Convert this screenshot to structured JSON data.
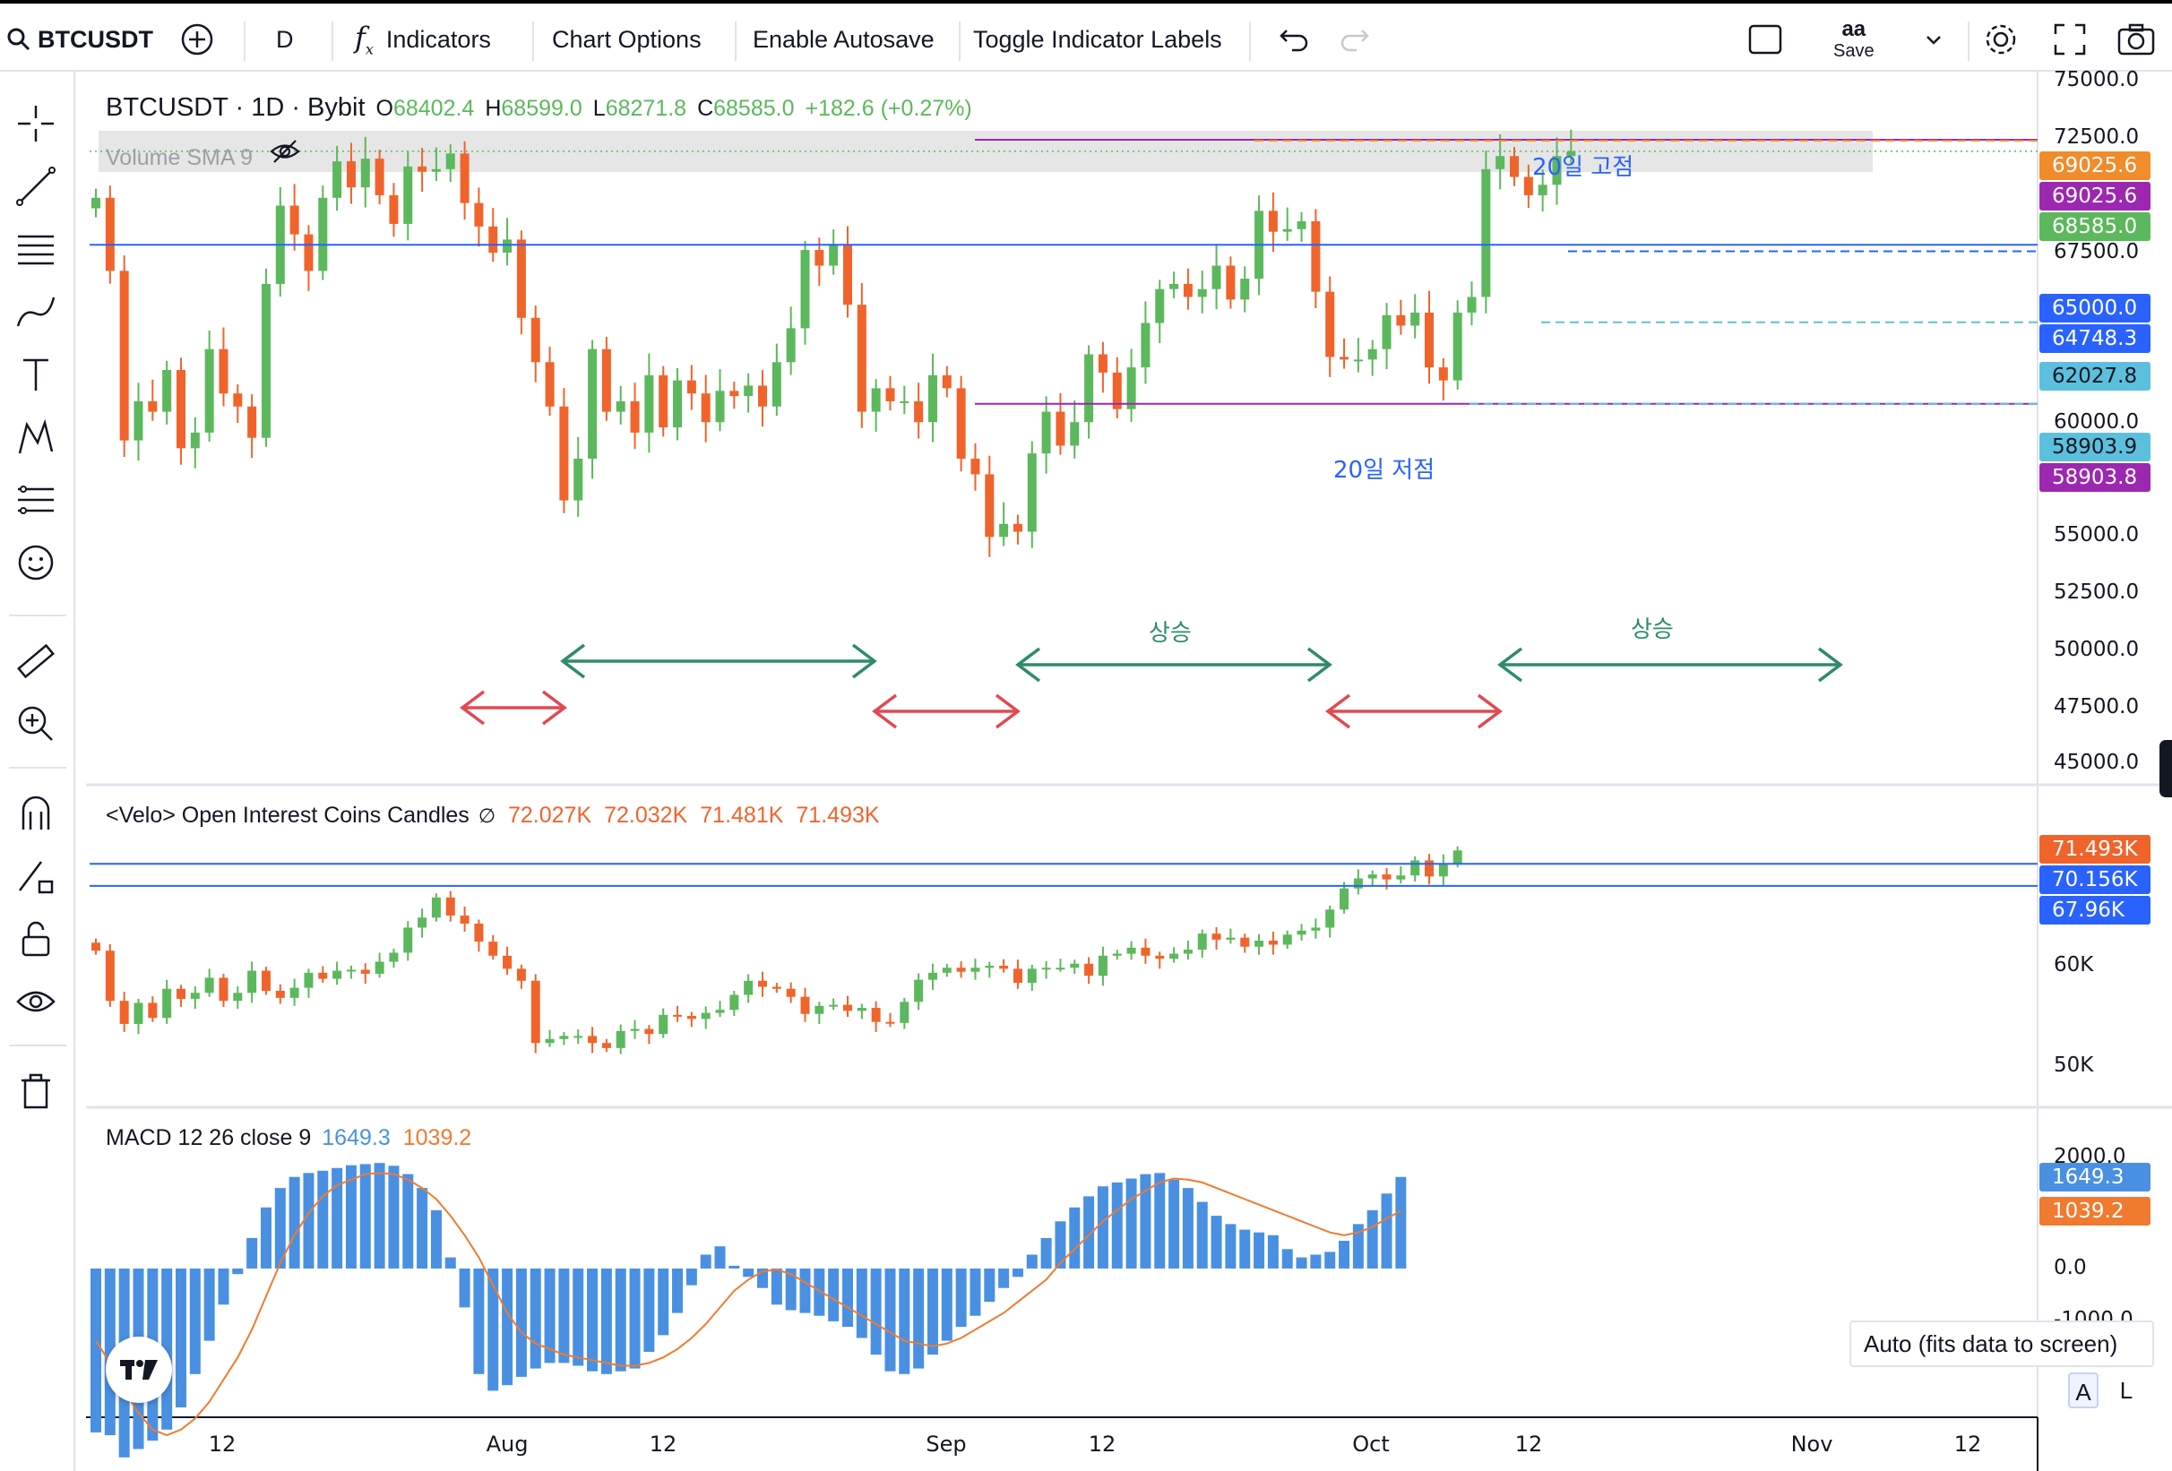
{
  "toolbar": {
    "symbol": "BTCUSDT",
    "interval": "D",
    "indicators": "Indicators",
    "chart_options": "Chart Options",
    "enable_autosave": "Enable Autosave",
    "toggle_indicator_labels": "Toggle Indicator Labels",
    "profile_initials": "aa",
    "save": "Save"
  },
  "main_legend": {
    "title": "BTCUSDT · 1D · Bybit",
    "o_label": "O",
    "o_value": "68402.4",
    "h_label": "H",
    "h_value": "68599.0",
    "l_label": "L",
    "l_value": "68271.8",
    "c_label": "C",
    "c_value": "68585.0",
    "change": "+182.6 (+0.27%)",
    "volume_label": "Volume SMA 9"
  },
  "annotations": {
    "high20": "20일 고점",
    "low20": "20일 저점",
    "rise1": "상승",
    "rise2": "상승"
  },
  "price_axis": [
    "75000.0",
    "72500.0",
    "67500.0",
    "60000.0",
    "55000.0",
    "52500.0",
    "50000.0",
    "47500.0",
    "45000.0"
  ],
  "price_tags": [
    {
      "text": "69025.6",
      "color": "#f08c2b"
    },
    {
      "text": "69025.6",
      "color": "#9c27b0"
    },
    {
      "text": "68585.0",
      "color": "#5cb85c"
    },
    {
      "text": "65000.0",
      "color": "#2962ff"
    },
    {
      "text": "64748.3",
      "color": "#2962ff"
    },
    {
      "text": "62027.8",
      "color": "#5bc0de"
    },
    {
      "text": "58903.9",
      "color": "#5bc0de"
    },
    {
      "text": "58903.8",
      "color": "#9c27b0"
    }
  ],
  "oi_legend": {
    "title": "<Velo> Open Interest Coins Candles",
    "symbol": "∅",
    "v1": "72.027K",
    "v2": "72.032K",
    "v3": "71.481K",
    "v4": "71.493K"
  },
  "oi_axis": [
    "60K",
    "50K"
  ],
  "oi_tags": [
    {
      "text": "71.493K",
      "color": "#f0642b"
    },
    {
      "text": "70.156K",
      "color": "#2962ff"
    },
    {
      "text": "67.96K",
      "color": "#2962ff"
    }
  ],
  "macd_legend": {
    "title": "MACD 12 26 close 9",
    "macd": "1649.3",
    "signal": "1039.2"
  },
  "macd_axis": [
    "2000.0",
    "0.0",
    "-1000.0"
  ],
  "macd_tags": [
    {
      "text": "1649.3",
      "color": "#4a90e2"
    },
    {
      "text": "1039.2",
      "color": "#f07a30"
    }
  ],
  "time_axis": [
    "12",
    "Aug",
    "12",
    "Sep",
    "12",
    "Oct",
    "12",
    "Nov",
    "12"
  ],
  "auto_tooltip": "Auto (fits data to screen)",
  "scale_buttons": {
    "auto": "A",
    "log": "L"
  },
  "colors": {
    "up": "#5cb85c",
    "down": "#f0642b",
    "hline": "#2962ff",
    "arrow_green": "#2e8b6b",
    "arrow_red": "#e34850",
    "macd_hist": "#4a90e2",
    "signal": "#f07a30"
  },
  "chart_data": {
    "type": "candlestick",
    "series": [
      {
        "name": "BTCUSDT",
        "close": [
          66800,
          64000,
          57500,
          59000,
          58600,
          60200,
          57200,
          57800,
          61000,
          59300,
          58800,
          57600,
          63500,
          66500,
          65400,
          64000,
          66800,
          68200,
          67200,
          68300,
          66900,
          65800,
          68000,
          67800,
          67900,
          68500,
          66600,
          65700,
          64700,
          65200,
          62200,
          60500,
          58800,
          55200,
          56800,
          61000,
          58600,
          59000,
          57800,
          60000,
          58000,
          59800,
          59300,
          58200,
          59400,
          59200,
          59600,
          58800,
          60500,
          61800,
          64800,
          64200,
          65000,
          62700,
          58600,
          59500,
          59000,
          59000,
          58200,
          60000,
          59500,
          56800,
          56200,
          53800,
          54300,
          54000,
          57000,
          58600,
          57300,
          58200,
          60800,
          60100,
          58700,
          60300,
          62000,
          63300,
          63500,
          63000,
          63300,
          64200,
          62900,
          63700,
          66300,
          65500,
          65600,
          65900,
          63200,
          60700,
          60600,
          60600,
          61000,
          62300,
          61900,
          62400,
          60300,
          59800,
          62400,
          63000,
          67900,
          68400,
          67600,
          66900,
          67300,
          68400,
          68585
        ]
      },
      {
        "name": "Open Interest",
        "close": [
          61500,
          56500,
          54200,
          56300,
          54800,
          57700,
          56700,
          57300,
          58800,
          56500,
          57300,
          59500,
          57500,
          56800,
          57800,
          59300,
          58700,
          59500,
          59600,
          59200,
          60400,
          61300,
          63800,
          64800,
          66800,
          65000,
          64200,
          62400,
          61000,
          59700,
          58500,
          52300,
          52700,
          53000,
          53000,
          52300,
          51800,
          53500,
          53700,
          53200,
          55100,
          55000,
          54700,
          55300,
          55600,
          57100,
          58500,
          57900,
          57700,
          56900,
          55200,
          56000,
          56100,
          55500,
          55800,
          54400,
          54300,
          56400,
          58600,
          59300,
          59800,
          59400,
          59800,
          60000,
          59700,
          58300,
          59700,
          59800,
          59800,
          60200,
          59000,
          61000,
          61200,
          61800,
          61000,
          60700,
          61200,
          61600,
          63200,
          62600,
          62800,
          61900,
          62500,
          62100,
          63100,
          63500,
          63800,
          65600,
          67700,
          68700,
          69100,
          68600,
          69000,
          70500,
          68900,
          70200,
          71490
        ]
      },
      {
        "name": "MACD",
        "values": [
          -2950,
          -3000,
          -3400,
          -3250,
          -3100,
          -2900,
          -2500,
          -1900,
          -1300,
          -650,
          -100,
          550,
          1100,
          1450,
          1650,
          1720,
          1760,
          1810,
          1860,
          1880,
          1900,
          1850,
          1700,
          1450,
          1050,
          200,
          -700,
          -1900,
          -2200,
          -2100,
          -1950,
          -1800,
          -1700,
          -1700,
          -1750,
          -1850,
          -1900,
          -1850,
          -1800,
          -1500,
          -1200,
          -800,
          -300,
          250,
          400,
          50,
          -150,
          -350,
          -650,
          -750,
          -800,
          -850,
          -950,
          -1050,
          -1250,
          -1550,
          -1850,
          -1900,
          -1800,
          -1550,
          -1300,
          -1050,
          -850,
          -600,
          -350,
          -150,
          250,
          550,
          850,
          1100,
          1300,
          1480,
          1550,
          1620,
          1700,
          1720,
          1600,
          1450,
          1200,
          950,
          800,
          700,
          650,
          600,
          350,
          200,
          250,
          300,
          500,
          800,
          1050,
          1350,
          1649
        ]
      },
      {
        "name": "Signal",
        "values": [
          -1300,
          -1700,
          -2200,
          -2600,
          -2900,
          -3000,
          -2900,
          -2700,
          -2400,
          -2000,
          -1600,
          -1100,
          -500,
          100,
          600,
          1000,
          1300,
          1500,
          1600,
          1700,
          1720,
          1700,
          1600,
          1450,
          1250,
          950,
          600,
          200,
          -300,
          -800,
          -1150,
          -1350,
          -1450,
          -1550,
          -1600,
          -1650,
          -1700,
          -1750,
          -1750,
          -1700,
          -1600,
          -1450,
          -1250,
          -1000,
          -700,
          -400,
          -200,
          -50,
          -20,
          -100,
          -250,
          -400,
          -550,
          -700,
          -850,
          -1000,
          -1150,
          -1300,
          -1350,
          -1400,
          -1350,
          -1250,
          -1100,
          -950,
          -800,
          -600,
          -400,
          -200,
          100,
          350,
          600,
          850,
          1050,
          1250,
          1400,
          1550,
          1620,
          1600,
          1550,
          1450,
          1350,
          1250,
          1150,
          1050,
          950,
          850,
          750,
          650,
          600,
          650,
          750,
          900,
          1039
        ]
      }
    ],
    "x_ticks": [
      "12",
      "Aug",
      "12",
      "Sep",
      "12",
      "Oct",
      "12",
      "Nov",
      "12"
    ],
    "price_ylim": [
      44000,
      76500
    ],
    "horizontal_levels": [
      65000,
      69025.6,
      58903.9,
      62027.8,
      64748.3
    ]
  }
}
